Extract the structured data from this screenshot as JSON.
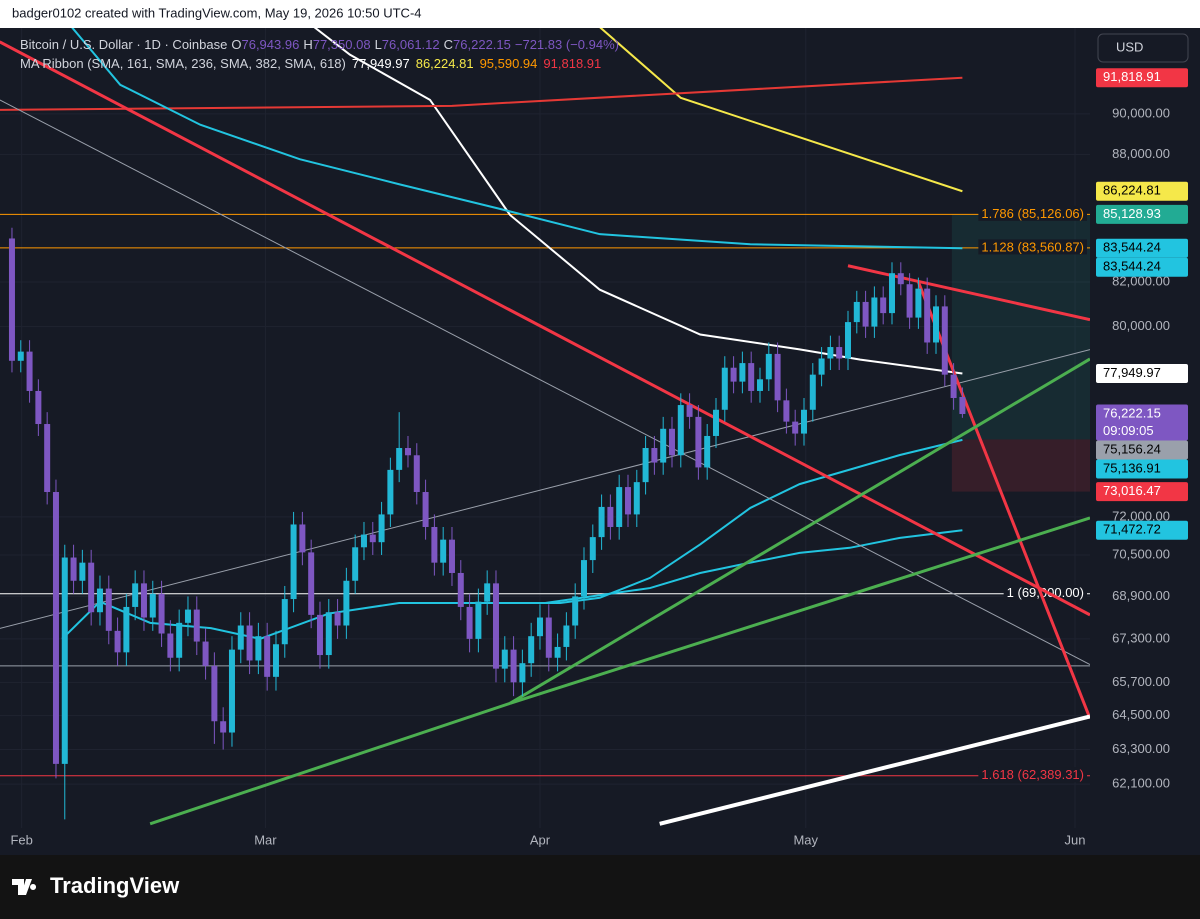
{
  "header": {
    "credit": "badger0102 created with TradingView.com, May 19, 2026 10:50 UTC-4"
  },
  "chart_data": {
    "type": "candlestick",
    "title": "Bitcoin / U.S. Dollar · 1D · Coinbase",
    "ohlc_legend": [
      {
        "label": "O",
        "value": "76,943.96"
      },
      {
        "label": "H",
        "value": "77,350.08"
      },
      {
        "label": "L",
        "value": "76,061.12"
      },
      {
        "label": "C",
        "value": "76,222.15"
      }
    ],
    "change": "−721.83 (−0.94%)",
    "indicator": {
      "title": "MA Ribbon (SMA, 161, SMA, 236, SMA, 382, SMA, 618)",
      "values": [
        {
          "label": "77,949.97",
          "color": "#ffffff"
        },
        {
          "label": "86,224.81",
          "color": "#f5e84a"
        },
        {
          "label": "95,590.94",
          "color": "#ff9800"
        },
        {
          "label": "91,818.91",
          "color": "#f23645"
        }
      ]
    },
    "currency": "USD",
    "up_color": "#22b8d6",
    "down_color": "#7e57c2",
    "log_scale": true,
    "open": [
      84000,
      78500,
      78900,
      77200,
      75800,
      73000,
      62800,
      70400,
      69500,
      70200,
      68300,
      69200,
      67600,
      66800,
      68500,
      69400,
      68100,
      69000,
      67500,
      66600,
      67900,
      68400,
      67200,
      66300,
      64300,
      63900,
      66900,
      67800,
      66500,
      67400,
      65900,
      67100,
      68800,
      71700,
      70600,
      68200,
      66700,
      68300,
      67800,
      69500,
      70800,
      71300,
      71000,
      72100,
      73900,
      74800,
      74500,
      73000,
      71600,
      70200,
      71100,
      69800,
      68500,
      67300,
      68700,
      69400,
      66200,
      66900,
      65700,
      66400,
      67400,
      68100,
      66600,
      67000,
      67800,
      68900,
      70300,
      71200,
      72400,
      71600,
      73200,
      72100,
      73400,
      74800,
      74200,
      75600,
      74500,
      76600,
      76100,
      74000,
      75300,
      76400,
      78200,
      77600,
      78400,
      77200,
      77700,
      78800,
      76800,
      75900,
      75400,
      76400,
      77900,
      78600,
      79100,
      78600,
      80200,
      81100,
      80000,
      81300,
      80600,
      82400,
      81900,
      80400,
      81700,
      79300,
      80900,
      77900,
      76943.96
    ],
    "high": [
      84500,
      79400,
      79400,
      77700,
      76300,
      73500,
      70900,
      70900,
      70700,
      70700,
      69700,
      69700,
      68100,
      69000,
      69900,
      69900,
      69500,
      69500,
      68000,
      68400,
      68900,
      68900,
      67700,
      66800,
      64800,
      67400,
      68300,
      68300,
      67900,
      67900,
      67600,
      69300,
      72200,
      72200,
      71100,
      68700,
      68800,
      68800,
      70000,
      71300,
      71800,
      71800,
      72600,
      74400,
      76300,
      75300,
      75000,
      73500,
      72100,
      71600,
      71600,
      70300,
      69000,
      69200,
      69900,
      69900,
      67400,
      67400,
      66900,
      67900,
      68600,
      68600,
      67500,
      68300,
      69400,
      70800,
      71700,
      72900,
      72900,
      73700,
      73700,
      73900,
      75300,
      75300,
      76100,
      76100,
      77100,
      77100,
      76600,
      75800,
      76900,
      78700,
      78700,
      78900,
      78900,
      78200,
      79300,
      79300,
      77300,
      76400,
      76900,
      78400,
      79100,
      79600,
      79600,
      80700,
      81600,
      81600,
      81800,
      81800,
      82900,
      82900,
      82400,
      82200,
      82200,
      81400,
      81400,
      78400,
      77350.08
    ],
    "low": [
      78000,
      78000,
      76700,
      75300,
      72500,
      62300,
      60900,
      69000,
      69000,
      67800,
      67800,
      67100,
      66300,
      66300,
      68000,
      67600,
      67600,
      67000,
      66100,
      66100,
      67400,
      66700,
      65800,
      63500,
      63300,
      63400,
      66400,
      66000,
      66000,
      65400,
      65400,
      66600,
      68300,
      70100,
      67700,
      66200,
      66200,
      67300,
      67300,
      69000,
      70300,
      70500,
      70500,
      71600,
      73400,
      74000,
      72500,
      71100,
      69700,
      69700,
      69300,
      68000,
      66800,
      66800,
      68200,
      65700,
      65700,
      65200,
      65200,
      65900,
      66900,
      66100,
      66100,
      66500,
      67300,
      68400,
      69800,
      70700,
      71100,
      71100,
      71600,
      71600,
      72900,
      73700,
      73700,
      74000,
      74000,
      75600,
      73500,
      73500,
      74800,
      75900,
      77100,
      77100,
      76700,
      76700,
      77200,
      76300,
      75400,
      74900,
      74900,
      75900,
      77400,
      78100,
      78100,
      78100,
      79700,
      79500,
      79500,
      80100,
      80100,
      81400,
      79900,
      79900,
      78800,
      78800,
      77400,
      76400,
      76061.12
    ],
    "close": [
      78500,
      78900,
      77200,
      75800,
      73000,
      62800,
      70400,
      69500,
      70200,
      68300,
      69200,
      67600,
      66800,
      68500,
      69400,
      68100,
      69000,
      67500,
      66600,
      67900,
      68400,
      67200,
      66300,
      64300,
      63900,
      66900,
      67800,
      66500,
      67400,
      65900,
      67100,
      68800,
      71700,
      70600,
      68200,
      66700,
      68300,
      67800,
      69500,
      70800,
      71300,
      71000,
      72100,
      73900,
      74800,
      74500,
      73000,
      71600,
      70200,
      71100,
      69800,
      68500,
      67300,
      68700,
      69400,
      66200,
      66900,
      65700,
      66400,
      67400,
      68100,
      66600,
      67000,
      67800,
      68900,
      70300,
      71200,
      72400,
      71600,
      73200,
      72100,
      73400,
      74800,
      74200,
      75600,
      74500,
      76600,
      76100,
      74000,
      75300,
      76400,
      78200,
      77600,
      78400,
      77200,
      77700,
      78800,
      76800,
      75900,
      75400,
      76400,
      77900,
      78600,
      79100,
      78600,
      80200,
      81100,
      80000,
      81300,
      80600,
      82400,
      81900,
      80400,
      81700,
      79300,
      80900,
      77900,
      76900,
      76222.15
    ],
    "xlim": [
      -1.36,
      122.5
    ],
    "xticks": [
      {
        "value": 1.1,
        "label": "Feb"
      },
      {
        "value": 28.8,
        "label": "Mar"
      },
      {
        "value": 60,
        "label": "Apr"
      },
      {
        "value": 90.2,
        "label": "May"
      },
      {
        "value": 120.8,
        "label": "Jun"
      }
    ],
    "ylim": [
      60610,
      94380
    ],
    "yticks": [
      {
        "value": 90000,
        "label": "90,000.00"
      },
      {
        "value": 88000,
        "label": "88,000.00"
      },
      {
        "value": 82000,
        "label": "82,000.00"
      },
      {
        "value": 80000,
        "label": "80,000.00"
      },
      {
        "value": 72000,
        "label": "72,000.00"
      },
      {
        "value": 70500,
        "label": "70,500.00"
      },
      {
        "value": 68900,
        "label": "68,900.00"
      },
      {
        "value": 67300,
        "label": "67,300.00"
      },
      {
        "value": 65700,
        "label": "65,700.00"
      },
      {
        "value": 64500,
        "label": "64,500.00"
      },
      {
        "value": 63300,
        "label": "63,300.00"
      },
      {
        "value": 62100,
        "label": "62,100.00"
      }
    ],
    "lines": [
      {
        "color": "#ffffff",
        "width": 2,
        "x": [
          30.5,
          38.4,
          47.5,
          56.6,
          66.8,
          78.2,
          89.5,
          96.4,
          108
        ],
        "values": [
          95800,
          93000,
          90700,
          85100,
          81650,
          79650,
          79000,
          78550,
          77949.97
        ]
      },
      {
        "color": "#f5e84a",
        "width": 2,
        "x": [
          63.4,
          76,
          108
        ],
        "values": [
          95800,
          90800,
          86224.81
        ]
      },
      {
        "color": "#e53935",
        "width": 2,
        "x": [
          -1.4,
          50,
          108
        ],
        "values": [
          90200,
          90400,
          91818.91
        ]
      },
      {
        "color": "#22c4e0",
        "width": 2,
        "x": [
          4.3,
          12.3,
          21.4,
          32.7,
          44,
          55.5,
          66.8,
          83.9,
          108
        ],
        "values": [
          95800,
          91460,
          89460,
          87770,
          86560,
          85380,
          84200,
          83730,
          83544.24
        ]
      },
      {
        "color": "#22c4e0",
        "width": 2,
        "x": [
          5.7,
          10,
          15.7,
          22.6,
          28.2,
          36,
          44,
          49.8,
          55.5,
          62.3,
          66.8,
          72.5,
          78.2,
          83.9,
          89.5,
          95.2,
          100.9,
          108
        ],
        "values": [
          67300,
          68700,
          67900,
          67700,
          67300,
          68250,
          68650,
          68650,
          68650,
          68650,
          68850,
          69610,
          70910,
          72360,
          73320,
          73910,
          74510,
          75136.91
        ]
      },
      {
        "color": "#22c4e0",
        "width": 2,
        "x": [
          60.6,
          72.5,
          78.2,
          83.9,
          89.5,
          95.2,
          100.9,
          108
        ],
        "values": [
          68650,
          69220,
          69800,
          70200,
          70580,
          70780,
          71170,
          71472.72
        ]
      },
      {
        "color": "#9aa0ab",
        "width": 1,
        "x": [
          -1.4,
          122.5
        ],
        "values": [
          90700,
          66350
        ]
      },
      {
        "color": "#9aa0ab",
        "width": 1,
        "x": [
          -1.4,
          122.5
        ],
        "values": [
          67690,
          78990
        ]
      },
      {
        "color": "#f23645",
        "width": 3,
        "x": [
          -1.4,
          122.5
        ],
        "values": [
          93660,
          68200
        ]
      },
      {
        "color": "#f23645",
        "width": 3,
        "x": [
          95,
          122.5
        ],
        "values": [
          82740,
          80310
        ]
      },
      {
        "color": "#f23645",
        "width": 3,
        "x": [
          103,
          122.5
        ],
        "values": [
          82000,
          64400
        ]
      },
      {
        "color": "#4caf50",
        "width": 3,
        "x": [
          56.6,
          122.5
        ],
        "values": [
          64940,
          78580
        ]
      },
      {
        "color": "#4caf50",
        "width": 3,
        "x": [
          56.6,
          122.5
        ],
        "values": [
          64940,
          71960
        ]
      },
      {
        "color": "#4caf50",
        "width": 3,
        "x": [
          15.7,
          56.6
        ],
        "values": [
          60750,
          64940
        ]
      },
      {
        "color": "#ffffff",
        "width": 4,
        "x": [
          73.6,
          122.5
        ],
        "values": [
          60750,
          64470
        ]
      }
    ],
    "hlines": [
      {
        "value": 85126.06,
        "color": "#ff9800",
        "label": "1.786 (85,126.06)"
      },
      {
        "value": 83560.87,
        "color": "#ff9800",
        "label": "1.128 (83,560.87)"
      },
      {
        "value": 69000,
        "color": "#ffffff",
        "label": "1 (69,000.00)"
      },
      {
        "value": 62389.31,
        "color": "#f23645",
        "label": "1.618 (62,389.31)"
      },
      {
        "value": 66300,
        "color": "#9aa0ab"
      }
    ],
    "price_labels": [
      {
        "value": 91818.91,
        "label": "91,818.91",
        "color": "#f23645",
        "text_color": "#ffffff"
      },
      {
        "value": 86224.81,
        "label": "86,224.81",
        "color": "#f5e84a",
        "text_color": "#000000"
      },
      {
        "value": 85128.93,
        "label": "85,128.93",
        "color": "#22ab94",
        "text_color": "#ffffff"
      },
      {
        "value": 83544.24,
        "label": "83,544.24",
        "color": "#22c4e0",
        "text_color": "#000000"
      },
      {
        "value": 83544.24,
        "label": "83,544.24",
        "color": "#22c4e0",
        "text_color": "#000000"
      },
      {
        "value": 77949.97,
        "label": "77,949.97",
        "color": "#ffffff",
        "text_color": "#000000"
      },
      {
        "value": 76222.15,
        "label": "76,222.15",
        "timer": "09:09:05",
        "color": "#7e57c2",
        "text_color": "#ffffff"
      },
      {
        "value": 75156.24,
        "label": "75,156.24",
        "color": "#9aa0ab",
        "text_color": "#000000"
      },
      {
        "value": 75136.91,
        "label": "75,136.91",
        "color": "#22c4e0",
        "text_color": "#000000"
      },
      {
        "value": 73016.47,
        "label": "73,016.47",
        "color": "#f23645",
        "text_color": "#ffffff"
      },
      {
        "value": 71472.72,
        "label": "71,472.72",
        "color": "#22c4e0",
        "text_color": "#000000"
      }
    ]
  },
  "brand": "TradingView"
}
